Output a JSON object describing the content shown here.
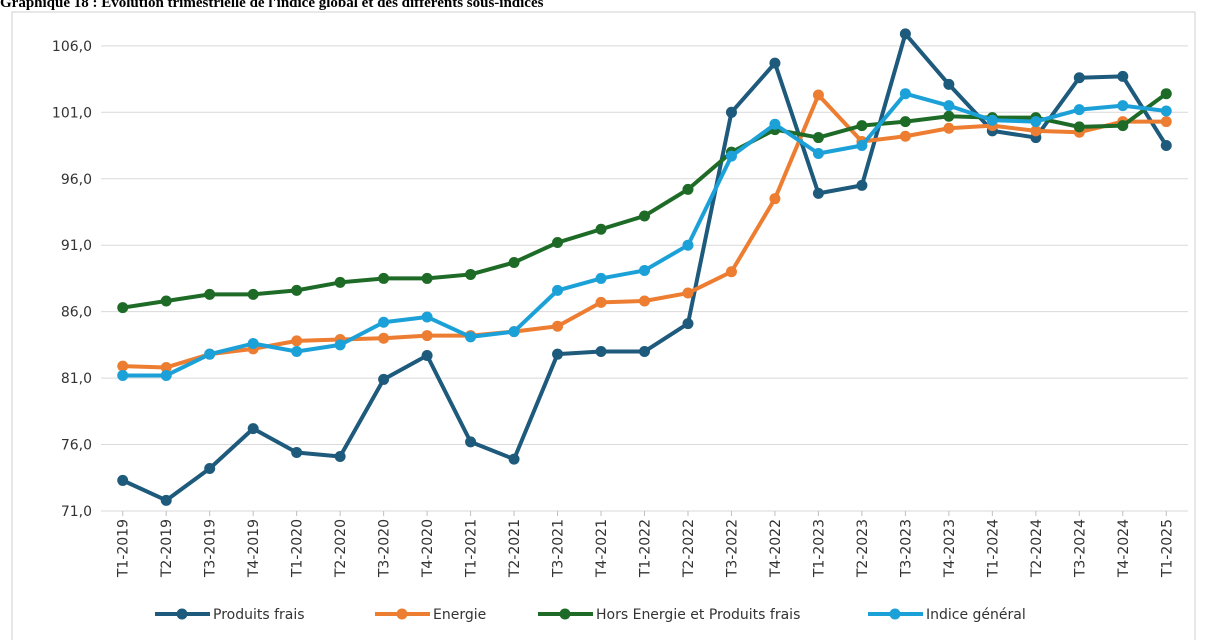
{
  "chart_data": {
    "type": "line",
    "title": "Graphique 18 : Evolution trimestrielle de l'indice global et des différents sous-indices",
    "categories": [
      "T1-2019",
      "T2-2019",
      "T3-2019",
      "T4-2019",
      "T1-2020",
      "T2-2020",
      "T3-2020",
      "T4-2020",
      "T1-2021",
      "T2-2021",
      "T3-2021",
      "T4-2021",
      "T1-2022",
      "T2-2022",
      "T3-2022",
      "T4-2022",
      "T1-2023",
      "T2-2023",
      "T3-2023",
      "T4-2023",
      "T1-2024",
      "T2-2024",
      "T3-2024",
      "T4-2024",
      "T1-2025"
    ],
    "series": [
      {
        "name": "Produits frais",
        "color": "#1d5a7c",
        "values": [
          73.3,
          71.8,
          74.2,
          77.2,
          75.4,
          75.1,
          80.9,
          82.7,
          76.2,
          74.9,
          82.8,
          83.0,
          83.0,
          85.1,
          101.0,
          104.7,
          94.9,
          95.5,
          106.9,
          103.1,
          99.6,
          99.1,
          103.6,
          103.7,
          98.5
        ]
      },
      {
        "name": "Energie",
        "color": "#ed7d31",
        "values": [
          81.9,
          81.8,
          82.8,
          83.2,
          83.8,
          83.9,
          84.0,
          84.2,
          84.2,
          84.5,
          84.9,
          86.7,
          86.8,
          87.4,
          89.0,
          94.5,
          102.3,
          98.8,
          99.2,
          99.8,
          100.0,
          99.6,
          99.5,
          100.3,
          100.3
        ]
      },
      {
        "name": "Hors Energie et Produits frais",
        "color": "#1e6b27",
        "values": [
          86.3,
          86.8,
          87.3,
          87.3,
          87.6,
          88.2,
          88.5,
          88.5,
          88.8,
          89.7,
          91.2,
          92.2,
          93.2,
          95.2,
          98.0,
          99.7,
          99.1,
          100.0,
          100.3,
          100.7,
          100.6,
          100.6,
          99.9,
          100.0,
          102.4
        ]
      },
      {
        "name": "Indice général",
        "color": "#1ba1d8",
        "values": [
          81.2,
          81.2,
          82.8,
          83.6,
          83.0,
          83.5,
          85.2,
          85.6,
          84.1,
          84.5,
          87.6,
          88.5,
          89.1,
          91.0,
          97.7,
          100.1,
          97.9,
          98.5,
          102.4,
          101.5,
          100.4,
          100.3,
          101.2,
          101.5,
          101.1
        ]
      }
    ],
    "ylim": [
      71,
      107
    ],
    "yticks": [
      {
        "value": 71,
        "label": "71,0"
      },
      {
        "value": 76,
        "label": "76,0"
      },
      {
        "value": 81,
        "label": "81,0"
      },
      {
        "value": 86,
        "label": "86,0"
      },
      {
        "value": 91,
        "label": "91,0"
      },
      {
        "value": 96,
        "label": "96,0"
      },
      {
        "value": 101,
        "label": "101,0"
      },
      {
        "value": 106,
        "label": "106,0"
      }
    ],
    "grid": true,
    "legend": "bottom"
  }
}
